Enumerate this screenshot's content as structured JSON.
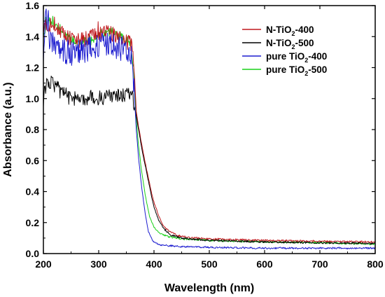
{
  "chart_data": {
    "type": "line",
    "xlabel": "Wavelength (nm)",
    "ylabel": "Absorbance (a.u.)",
    "xlim": [
      200,
      800
    ],
    "ylim": [
      0.0,
      1.6
    ],
    "x_ticks": [
      "200",
      "300",
      "400",
      "500",
      "600",
      "700",
      "800"
    ],
    "y_ticks": [
      "0.0",
      "0.2",
      "0.4",
      "0.6",
      "0.8",
      "1.0",
      "1.2",
      "1.4",
      "1.6"
    ],
    "grid": false,
    "legend_position": "top-right",
    "series": [
      {
        "name": "N-TiO2-400",
        "label_main": "N-TiO",
        "label_sub": "2",
        "label_tail": "-400",
        "color": "#c0191e",
        "noise": 0.05,
        "points": [
          [
            200,
            1.47
          ],
          [
            220,
            1.48
          ],
          [
            240,
            1.4
          ],
          [
            260,
            1.37
          ],
          [
            280,
            1.39
          ],
          [
            300,
            1.42
          ],
          [
            320,
            1.43
          ],
          [
            340,
            1.38
          ],
          [
            355,
            1.36
          ],
          [
            362,
            1.34
          ],
          [
            368,
            0.92
          ],
          [
            372,
            0.82
          ],
          [
            380,
            0.66
          ],
          [
            388,
            0.52
          ],
          [
            395,
            0.4
          ],
          [
            400,
            0.33
          ],
          [
            408,
            0.25
          ],
          [
            415,
            0.19
          ],
          [
            425,
            0.15
          ],
          [
            440,
            0.12
          ],
          [
            460,
            0.105
          ],
          [
            500,
            0.095
          ],
          [
            600,
            0.085
          ],
          [
            700,
            0.08
          ],
          [
            800,
            0.075
          ]
        ]
      },
      {
        "name": "N-TiO2-500",
        "label_main": "N-TiO",
        "label_sub": "2",
        "label_tail": "-500",
        "color": "#000000",
        "noise": 0.05,
        "points": [
          [
            200,
            1.0
          ],
          [
            205,
            1.09
          ],
          [
            215,
            1.11
          ],
          [
            230,
            1.05
          ],
          [
            250,
            1.0
          ],
          [
            270,
            0.99
          ],
          [
            290,
            1.01
          ],
          [
            310,
            1.0
          ],
          [
            330,
            1.02
          ],
          [
            350,
            1.03
          ],
          [
            360,
            1.03
          ],
          [
            366,
            0.93
          ],
          [
            372,
            0.8
          ],
          [
            380,
            0.64
          ],
          [
            388,
            0.5
          ],
          [
            395,
            0.38
          ],
          [
            400,
            0.3
          ],
          [
            408,
            0.22
          ],
          [
            418,
            0.16
          ],
          [
            430,
            0.12
          ],
          [
            450,
            0.1
          ],
          [
            500,
            0.085
          ],
          [
            600,
            0.075
          ],
          [
            700,
            0.07
          ],
          [
            800,
            0.065
          ]
        ]
      },
      {
        "name": "pure TiO2-400",
        "label_main": "pure TiO",
        "label_sub": "2",
        "label_tail": "-400",
        "color": "#1c1ccf",
        "noise": 0.08,
        "points": [
          [
            200,
            1.32
          ],
          [
            205,
            1.55
          ],
          [
            210,
            1.4
          ],
          [
            230,
            1.32
          ],
          [
            250,
            1.29
          ],
          [
            270,
            1.3
          ],
          [
            290,
            1.33
          ],
          [
            310,
            1.35
          ],
          [
            330,
            1.34
          ],
          [
            350,
            1.29
          ],
          [
            360,
            1.26
          ],
          [
            364,
            1.05
          ],
          [
            368,
            0.8
          ],
          [
            372,
            0.62
          ],
          [
            378,
            0.42
          ],
          [
            384,
            0.26
          ],
          [
            390,
            0.14
          ],
          [
            398,
            0.08
          ],
          [
            410,
            0.055
          ],
          [
            450,
            0.045
          ],
          [
            500,
            0.04
          ],
          [
            600,
            0.035
          ],
          [
            700,
            0.035
          ],
          [
            800,
            0.035
          ]
        ]
      },
      {
        "name": "pure TiO2-500",
        "label_main": "pure TiO",
        "label_sub": "2",
        "label_tail": "-500",
        "color": "#19d019",
        "noise": 0.03,
        "points": [
          [
            200,
            1.43
          ],
          [
            210,
            1.5
          ],
          [
            225,
            1.47
          ],
          [
            245,
            1.39
          ],
          [
            265,
            1.36
          ],
          [
            285,
            1.38
          ],
          [
            305,
            1.42
          ],
          [
            325,
            1.43
          ],
          [
            345,
            1.39
          ],
          [
            358,
            1.36
          ],
          [
            363,
            1.2
          ],
          [
            368,
            0.86
          ],
          [
            372,
            0.7
          ],
          [
            378,
            0.52
          ],
          [
            385,
            0.36
          ],
          [
            392,
            0.24
          ],
          [
            400,
            0.17
          ],
          [
            410,
            0.13
          ],
          [
            425,
            0.11
          ],
          [
            450,
            0.095
          ],
          [
            500,
            0.085
          ],
          [
            600,
            0.075
          ],
          [
            700,
            0.07
          ],
          [
            800,
            0.06
          ]
        ]
      }
    ]
  }
}
